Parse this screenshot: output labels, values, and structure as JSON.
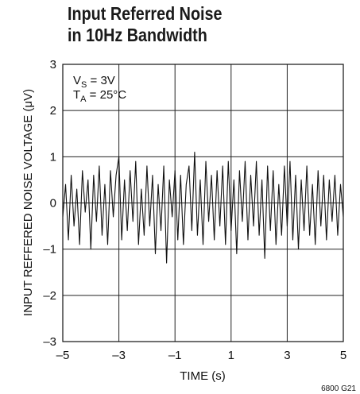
{
  "chart_data": {
    "type": "line",
    "title_lines": [
      "Input Referred Noise",
      "in 10Hz Bandwidth"
    ],
    "xlabel": "TIME (s)",
    "ylabel": "INPUT REFFERED NOISE VOLTAGE (μV)",
    "xlim": [
      -5,
      5
    ],
    "ylim": [
      -3,
      3
    ],
    "x_ticks": [
      -5,
      -3,
      -1,
      1,
      3,
      5
    ],
    "y_ticks": [
      -3,
      -2,
      -1,
      0,
      1,
      2,
      3
    ],
    "x_tick_labels": [
      "–5",
      "–3",
      "–1",
      "1",
      "3",
      "5"
    ],
    "y_tick_labels": [
      "–3",
      "–2",
      "–1",
      "0",
      "1",
      "2",
      "3"
    ],
    "grid": true,
    "annotation": {
      "vs_main": "V",
      "vs_sub": "S",
      "vs_rest": " = 3V",
      "ta_main": "T",
      "ta_sub": "A",
      "ta_rest": " = 25°C"
    },
    "figure_code": "6800 G21",
    "series": [
      {
        "x": [
          -5.0,
          -4.9,
          -4.8,
          -4.7,
          -4.6,
          -4.5,
          -4.4,
          -4.3,
          -4.2,
          -4.1,
          -4.0,
          -3.9,
          -3.8,
          -3.7,
          -3.6,
          -3.5,
          -3.4,
          -3.3,
          -3.2,
          -3.1,
          -3.0,
          -2.9,
          -2.8,
          -2.7,
          -2.6,
          -2.5,
          -2.4,
          -2.3,
          -2.2,
          -2.1,
          -2.0,
          -1.9,
          -1.8,
          -1.7,
          -1.6,
          -1.5,
          -1.4,
          -1.3,
          -1.2,
          -1.1,
          -1.0,
          -0.9,
          -0.8,
          -0.7,
          -0.6,
          -0.5,
          -0.4,
          -0.3,
          -0.2,
          -0.1,
          0.0,
          0.1,
          0.2,
          0.3,
          0.4,
          0.5,
          0.6,
          0.7,
          0.8,
          0.9,
          1.0,
          1.1,
          1.2,
          1.3,
          1.4,
          1.5,
          1.6,
          1.7,
          1.8,
          1.9,
          2.0,
          2.1,
          2.2,
          2.3,
          2.4,
          2.5,
          2.6,
          2.7,
          2.8,
          2.9,
          3.0,
          3.1,
          3.2,
          3.3,
          3.4,
          3.5,
          3.6,
          3.7,
          3.8,
          3.9,
          4.0,
          4.1,
          4.2,
          4.3,
          4.4,
          4.5,
          4.6,
          4.7,
          4.8,
          4.9,
          5.0
        ],
        "y": [
          -0.3,
          0.4,
          -0.8,
          0.6,
          -0.5,
          0.3,
          -0.9,
          0.7,
          -0.2,
          0.5,
          -1.0,
          0.6,
          -0.4,
          0.8,
          -0.7,
          0.4,
          -0.9,
          0.7,
          -0.3,
          0.6,
          1.0,
          -0.8,
          0.5,
          -0.6,
          0.7,
          -0.4,
          0.9,
          -0.9,
          0.3,
          -0.7,
          0.8,
          -0.5,
          0.6,
          -1.1,
          0.4,
          -0.6,
          0.8,
          -1.3,
          0.5,
          -0.3,
          0.7,
          -0.8,
          0.6,
          -0.9,
          0.4,
          0.8,
          -0.6,
          1.1,
          -0.7,
          0.5,
          -0.9,
          0.9,
          -0.4,
          0.6,
          -0.8,
          0.7,
          -0.5,
          0.8,
          -0.9,
          0.9,
          -0.6,
          0.5,
          -1.1,
          0.7,
          -0.4,
          0.9,
          -0.8,
          0.6,
          -0.5,
          0.9,
          -0.7,
          0.5,
          -1.2,
          0.8,
          -0.6,
          0.7,
          -0.9,
          0.4,
          -0.7,
          0.8,
          -0.5,
          0.9,
          -0.8,
          0.6,
          -1.0,
          0.5,
          -0.6,
          0.8,
          -0.7,
          0.4,
          -0.9,
          0.7,
          -0.5,
          0.6,
          -0.8,
          0.5,
          -0.4,
          0.6,
          -0.7,
          0.4,
          -0.3
        ]
      }
    ]
  }
}
